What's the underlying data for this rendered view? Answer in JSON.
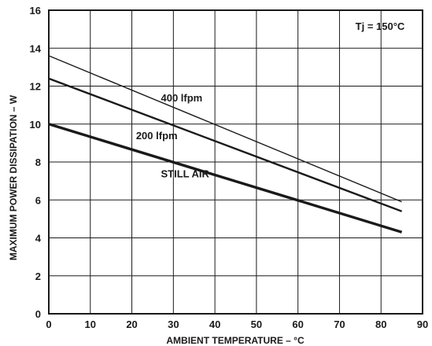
{
  "chart_data": {
    "type": "line",
    "title": "",
    "xlabel": "AMBIENT TEMPERATURE – °C",
    "ylabel": "MAXIMUM POWER DISSIPATION – W",
    "xlim": [
      0,
      90
    ],
    "ylim": [
      0,
      16
    ],
    "x_ticks": [
      0,
      10,
      20,
      30,
      40,
      50,
      60,
      70,
      80,
      90
    ],
    "y_ticks": [
      0,
      2,
      4,
      6,
      8,
      10,
      12,
      14,
      16
    ],
    "grid": true,
    "annotation": "Tj = 150°C",
    "series": [
      {
        "name": "400 lfpm",
        "x": [
          0,
          85
        ],
        "y": [
          13.6,
          5.9
        ]
      },
      {
        "name": "200 lfpm",
        "x": [
          0,
          85
        ],
        "y": [
          12.4,
          5.4
        ]
      },
      {
        "name": "STILL AIR",
        "x": [
          0,
          85
        ],
        "y": [
          10.0,
          4.3
        ]
      }
    ]
  }
}
